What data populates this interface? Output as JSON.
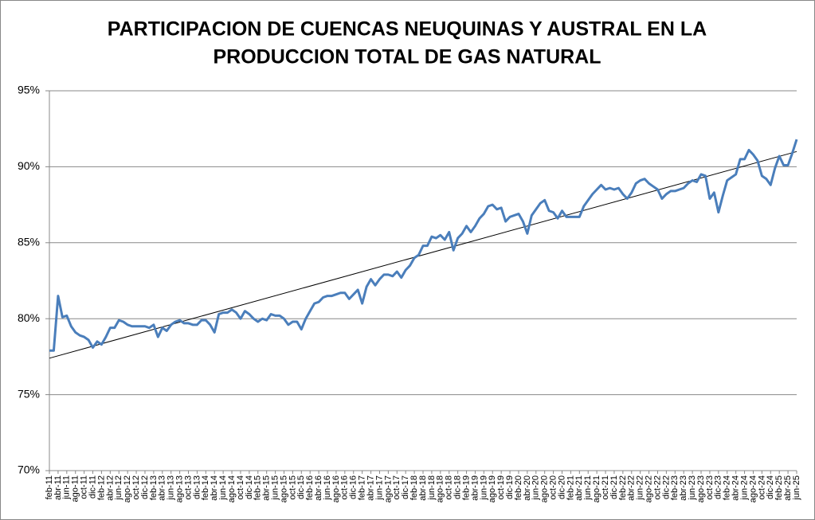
{
  "chart_data": {
    "type": "line",
    "title": [
      "PARTICIPACION DE CUENCAS NEUQUINAS Y AUSTRAL EN LA",
      "PRODUCCION TOTAL DE GAS NATURAL"
    ],
    "categories": [
      "feb-11",
      null,
      "abr-11",
      null,
      "jun-11",
      null,
      "ago-11",
      null,
      "oct-11",
      null,
      "dic-11",
      null,
      "feb-12",
      null,
      "abr-12",
      null,
      "jun-12",
      null,
      "ago-12",
      null,
      "oct-12",
      null,
      "dic-12",
      null,
      "feb-13",
      null,
      "abr-13",
      null,
      "jun-13",
      null,
      "ago-13",
      null,
      "oct-13",
      null,
      "dic-13",
      null,
      "feb-14",
      null,
      "abr-14",
      null,
      "jun-14",
      null,
      "ago-14",
      null,
      "oct-14",
      null,
      "dic-14",
      null,
      "feb-15",
      null,
      "abr-15",
      null,
      "jun-15",
      null,
      "ago-15",
      null,
      "oct-15",
      null,
      "dic-15",
      null,
      "feb-16",
      null,
      "abr-16",
      null,
      "jun-16",
      null,
      "ago-16",
      null,
      "oct-16",
      null,
      "dic-16",
      null,
      "feb-17",
      null,
      "abr-17",
      null,
      "jun-17",
      null,
      "ago-17",
      null,
      "oct-17",
      null,
      "dic-17",
      null,
      "feb-18",
      null,
      "abr-18",
      null,
      "jun-18",
      null,
      "ago-18",
      null,
      "oct-18",
      null,
      "dic-18",
      null,
      "feb-19",
      null,
      "abr-19",
      null,
      "jun-19",
      null,
      "ago-19",
      null,
      "oct-19",
      null,
      "dic-19",
      null,
      "feb-20",
      null,
      "abr-20",
      null,
      "jun-20",
      null,
      "ago-20",
      null,
      "oct-20",
      null,
      "dic-20",
      null,
      "feb-21",
      null,
      "abr-21",
      null,
      "jun-21",
      null,
      "ago-21",
      null,
      "oct-21",
      null,
      "dic-21",
      null,
      "feb-22",
      null,
      "abr-22",
      null,
      "jun-22",
      null,
      "ago-22",
      null,
      "oct-22",
      null,
      "dic-22",
      null,
      "feb-23",
      null,
      "abr-23",
      null,
      "jun-23",
      null,
      "ago-23",
      null,
      "oct-23",
      null,
      "dic-23",
      null,
      "feb-24",
      null,
      "abr-24",
      null,
      "jun-24",
      null,
      "ago-24",
      null,
      "oct-24",
      null,
      "dic-24",
      null,
      "feb-25",
      null,
      "abr-25",
      null,
      "jun-25"
    ],
    "series": [
      {
        "color": "#4a7ebb",
        "values": [
          77.9,
          77.9,
          81.5,
          80.1,
          80.2,
          79.5,
          79.1,
          78.9,
          78.8,
          78.6,
          78.1,
          78.5,
          78.3,
          78.8,
          79.4,
          79.4,
          79.9,
          79.8,
          79.6,
          79.5,
          79.5,
          79.5,
          79.5,
          79.4,
          79.6,
          78.8,
          79.4,
          79.2,
          79.6,
          79.8,
          79.9,
          79.7,
          79.7,
          79.6,
          79.6,
          79.9,
          79.9,
          79.6,
          79.1,
          80.3,
          80.4,
          80.4,
          80.6,
          80.4,
          80.0,
          80.5,
          80.3,
          80.0,
          79.8,
          80.0,
          79.9,
          80.3,
          80.2,
          80.2,
          80.0,
          79.6,
          79.8,
          79.8,
          79.3,
          80.0,
          80.5,
          81.0,
          81.1,
          81.4,
          81.5,
          81.5,
          81.6,
          81.7,
          81.7,
          81.3,
          81.6,
          81.9,
          81.0,
          82.1,
          82.6,
          82.2,
          82.6,
          82.9,
          82.9,
          82.8,
          83.1,
          82.7,
          83.2,
          83.5,
          84.0,
          84.2,
          84.8,
          84.8,
          85.4,
          85.3,
          85.5,
          85.2,
          85.7,
          84.5,
          85.3,
          85.6,
          86.1,
          85.7,
          86.1,
          86.6,
          86.9,
          87.4,
          87.5,
          87.2,
          87.3,
          86.4,
          86.7,
          86.8,
          86.9,
          86.4,
          85.6,
          86.8,
          87.2,
          87.6,
          87.8,
          87.1,
          87.0,
          86.6,
          87.1,
          86.7,
          86.7,
          86.7,
          86.7,
          87.4,
          87.8,
          88.2,
          88.5,
          88.8,
          88.5,
          88.6,
          88.5,
          88.6,
          88.2,
          87.9,
          88.3,
          88.9,
          89.1,
          89.2,
          88.9,
          88.7,
          88.5,
          87.9,
          88.2,
          88.4,
          88.4,
          88.5,
          88.6,
          88.9,
          89.1,
          89.0,
          89.5,
          89.4,
          87.9,
          88.3,
          87.0,
          88.1,
          89.1,
          89.3,
          89.5,
          90.5,
          90.5,
          91.1,
          90.8,
          90.4,
          89.4,
          89.2,
          88.8,
          89.9,
          90.7,
          90.1,
          90.1,
          90.9,
          91.8
        ]
      }
    ],
    "trendline": {
      "color": "#000000",
      "start": 77.4,
      "end": 91.0
    },
    "ylim": [
      70,
      95
    ],
    "yticks": [
      {
        "value": 70,
        "label": "70%"
      },
      {
        "value": 75,
        "label": "75%"
      },
      {
        "value": 80,
        "label": "80%"
      },
      {
        "value": 85,
        "label": "85%"
      },
      {
        "value": 90,
        "label": "90%"
      },
      {
        "value": 95,
        "label": "95%"
      }
    ],
    "grid": true
  }
}
